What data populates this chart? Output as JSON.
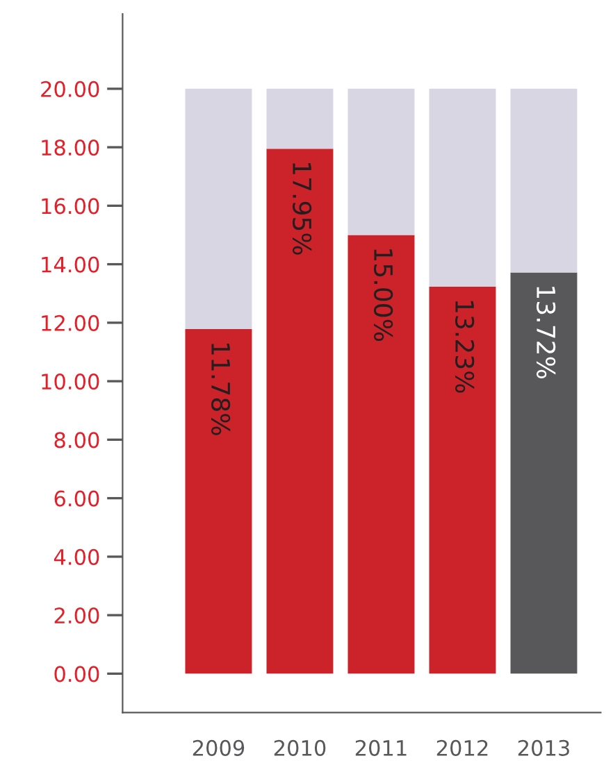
{
  "chart_data": {
    "type": "bar",
    "categories": [
      "2009",
      "2010",
      "2011",
      "2012",
      "2013"
    ],
    "series": [
      {
        "colors": [
          "#cc2229",
          "#cc2229",
          "#cc2229",
          "#cc2229",
          "#58585a"
        ],
        "values": [
          11.78,
          17.95,
          15.0,
          13.23,
          13.72
        ],
        "value_labels": [
          "11.78%",
          "17.95%",
          "15.00%",
          "13.23%",
          "13.72%"
        ]
      },
      {
        "color": "#d9d6e3",
        "values": [
          8.22,
          2.05,
          5.0,
          6.77,
          6.28
        ]
      }
    ],
    "ylim": [
      -1.33,
      22.56
    ],
    "yticks": [
      {
        "value": 0,
        "label": "0.00"
      },
      {
        "value": 2,
        "label": "2.00"
      },
      {
        "value": 4,
        "label": "4.00"
      },
      {
        "value": 6,
        "label": "6.00"
      },
      {
        "value": 8,
        "label": "8.00"
      },
      {
        "value": 10,
        "label": "10.00"
      },
      {
        "value": 12,
        "label": "12.00"
      },
      {
        "value": 14,
        "label": "14.00"
      },
      {
        "value": 16,
        "label": "16.00"
      },
      {
        "value": 18,
        "label": "18.00"
      },
      {
        "value": 20,
        "label": "20.00"
      }
    ],
    "stacked": true,
    "grid": false,
    "legend": false
  }
}
